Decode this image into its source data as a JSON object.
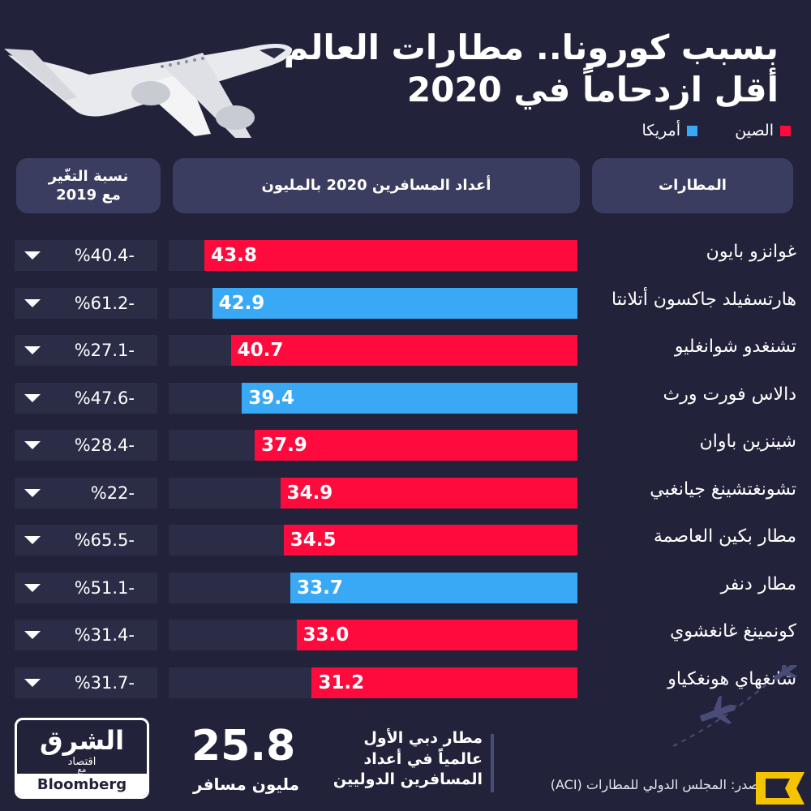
{
  "title": {
    "line1": "بسبب كورونا.. مطارات العالم",
    "line2": "أقل ازدحاماً في 2020"
  },
  "legend": {
    "china": {
      "label": "الصين",
      "color": "#ff0a3c"
    },
    "usa": {
      "label": "أمريكا",
      "color": "#3aa9f5"
    }
  },
  "headers": {
    "airports": "المطارات",
    "passengers": "أعداد المسافرين 2020 بالمليون",
    "change_line1": "نسبة التغّير",
    "change_line2": "مع 2019"
  },
  "chart_data": {
    "type": "bar",
    "orientation": "horizontal",
    "categories": [
      "غوانزو بايون",
      "هارتسفيلد جاكسون أتلانتا",
      "تشنغدو شوانغليو",
      "دالاس فورت ورث",
      "شينزين باوان",
      "تشونغتشينغ جيانغبي",
      "مطار بكين العاصمة",
      "مطار دنفر",
      "كونمينغ غانغشوي",
      "شانغهاي هونغكياو"
    ],
    "values": [
      43.8,
      42.9,
      40.7,
      39.4,
      37.9,
      34.9,
      34.5,
      33.7,
      33.0,
      31.2
    ],
    "value_labels": [
      "43.8",
      "42.9",
      "40.7",
      "39.4",
      "37.9",
      "34.9",
      "34.5",
      "33.7",
      "33.0",
      "31.2"
    ],
    "country": [
      "china",
      "usa",
      "china",
      "usa",
      "china",
      "china",
      "china",
      "usa",
      "china",
      "china"
    ],
    "change_labels": [
      "%40.4-",
      "%61.2-",
      "%27.1-",
      "%47.6-",
      "%28.4-",
      "%22-",
      "%65.5-",
      "%51.1-",
      "%31.4-",
      "%31.7-"
    ],
    "change_values": [
      -40.4,
      -61.2,
      -27.1,
      -47.6,
      -28.4,
      -22,
      -65.5,
      -51.1,
      -31.4,
      -31.7
    ],
    "xlim": [
      0,
      48
    ],
    "grid": false
  },
  "brand": {
    "main": "الشرق",
    "sub": "اقتصاد",
    "with": "مع",
    "partner": "Bloomberg"
  },
  "highlight": {
    "value": "25.8",
    "unit": "مليون مسافر",
    "note": "مطار دبي الأول عالمياً في أعداد المسافرين الدوليين"
  },
  "source": "المصدر: المجلس الدولي للمطارات (ACI)"
}
